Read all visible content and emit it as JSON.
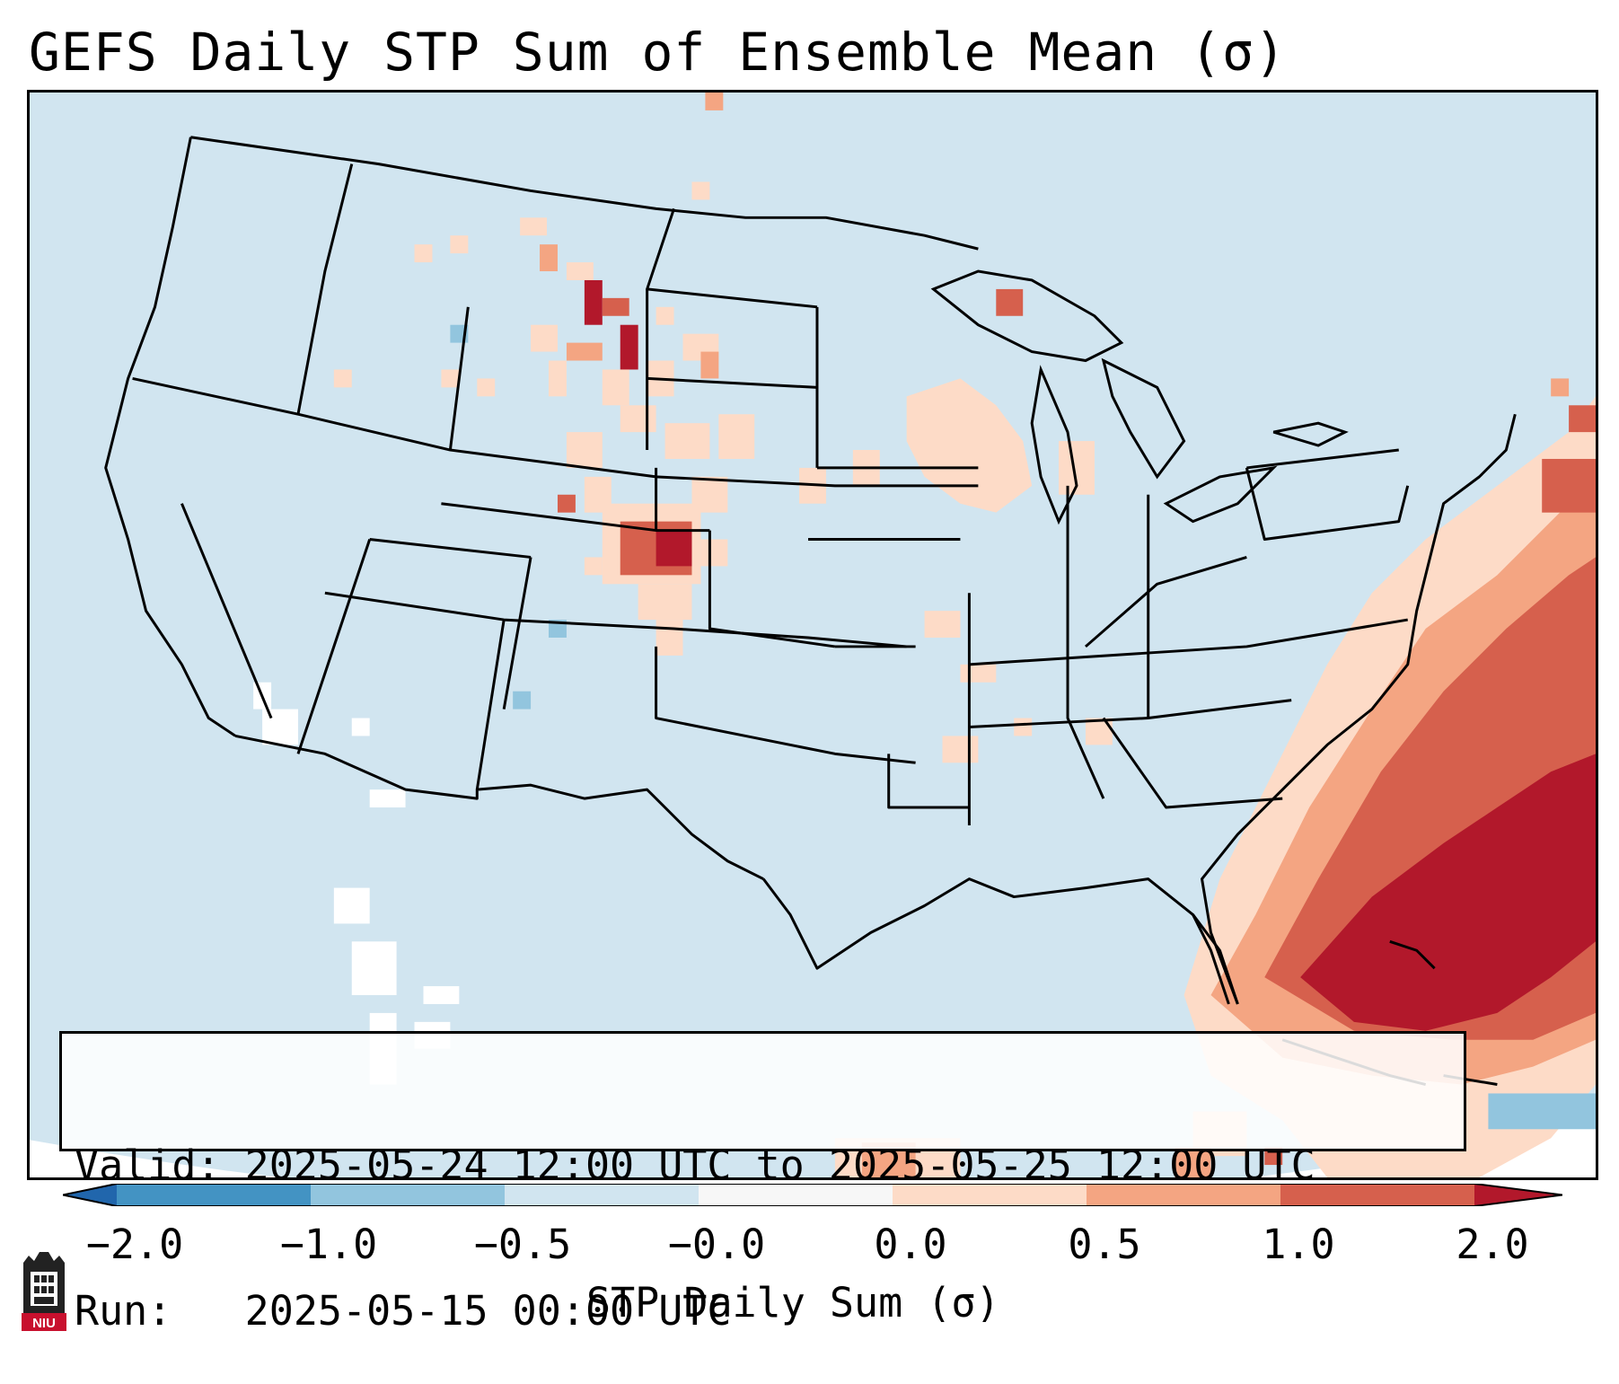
{
  "title": "GEFS Daily STP Sum of Ensemble Mean (σ)",
  "info": {
    "valid_line": "Valid: 2025-05-24 12:00 UTC to 2025-05-25 12:00 UTC",
    "run_line": "Run:   2025-05-15 00:00 UTC"
  },
  "colorbar": {
    "label": "STP Daily Sum (σ)",
    "ticks": [
      "−2.0",
      "−1.0",
      "−0.5",
      "−0.0",
      "0.0",
      "0.5",
      "1.0",
      "2.0"
    ],
    "bins": [
      {
        "range": "< -2.0",
        "color": "#2166ac"
      },
      {
        "range": "-2.0 to -1.0",
        "color": "#4393c3"
      },
      {
        "range": "-1.0 to -0.5",
        "color": "#92c5de"
      },
      {
        "range": "-0.5 to -0.0",
        "color": "#d1e5f0"
      },
      {
        "range": "-0.0 to 0.0",
        "color": "#f7f7f7"
      },
      {
        "range": "0.0 to 0.5",
        "color": "#fddbc7"
      },
      {
        "range": "0.5 to 1.0",
        "color": "#f4a582"
      },
      {
        "range": "1.0 to 2.0",
        "color": "#d6604d"
      },
      {
        "range": "> 2.0",
        "color": "#b2182b"
      }
    ]
  },
  "logo": {
    "text": "NIU",
    "name": "niu-logo"
  },
  "colors": {
    "map_background": "#d1e5f0",
    "border": "#000000"
  }
}
